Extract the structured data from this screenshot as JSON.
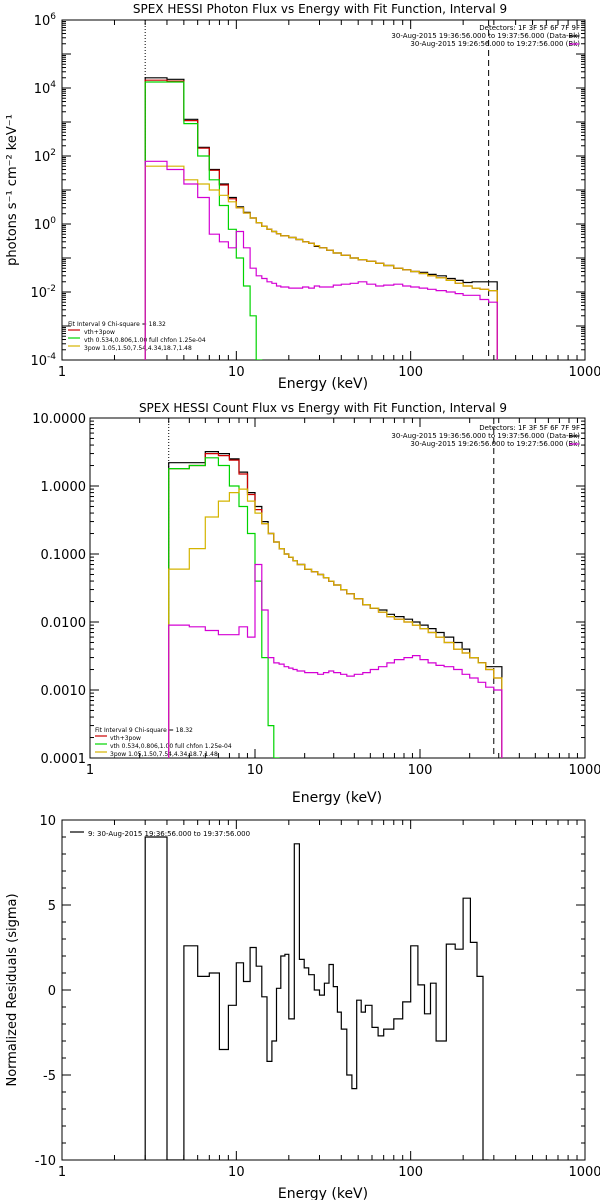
{
  "chart_data": [
    {
      "type": "line",
      "title": "SPEX HESSI Photon Flux vs Energy with Fit Function, Interval 9",
      "xlabel": "Energy (keV)",
      "ylabel": "photons s⁻¹ cm⁻² keV⁻¹",
      "xscale": "log",
      "yscale": "log",
      "xlim": [
        1,
        1000
      ],
      "ylim": [
        0.0001,
        1000000
      ],
      "x_tick_labels": [
        "1",
        "10",
        "100",
        "1000"
      ],
      "y_tick_labels": [
        {
          "base": "10",
          "exp": "-4"
        },
        {
          "base": "10",
          "exp": "-2"
        },
        {
          "base": "10",
          "exp": "0"
        },
        {
          "base": "10",
          "exp": "2"
        },
        {
          "base": "10",
          "exp": "4"
        },
        {
          "base": "10",
          "exp": "6"
        }
      ],
      "header": {
        "detectors": "Detectors: 1F 3F 5F 6F 7F 9F",
        "lines": [
          {
            "text": "30-Aug-2015 19:36:56.000 to 19:37:56.000 (Data-Bk)",
            "color": "#000000"
          },
          {
            "text": "30-Aug-2015 19:26:56.000 to 19:27:56.000 (Bk)",
            "color": "#d400d4"
          }
        ]
      },
      "legend": {
        "placement": "bottom-left",
        "title": "Fit Interval 9   Chi-square = 18.32",
        "entries": [
          {
            "text": "vth+3pow",
            "color": "#cc0000"
          },
          {
            "text": "vth 0.534,0.806,1.00  full chfon 1.25e-04",
            "color": "#00d400"
          },
          {
            "text": "3pow 1.05,1.50,7.54,4.34,18.7,1.48",
            "color": "#d4b400"
          }
        ]
      },
      "vlines": [
        {
          "x": 3,
          "style": "dotted"
        },
        {
          "x": 280,
          "style": "dashed"
        }
      ],
      "series": [
        {
          "name": "Data-Bk",
          "color": "#000000",
          "x": [
            3,
            4,
            5,
            6,
            7,
            8,
            9,
            10,
            11,
            12,
            13,
            14,
            15,
            16,
            17,
            18,
            20,
            22,
            24,
            26,
            28,
            30,
            33,
            36,
            40,
            45,
            50,
            56,
            63,
            70,
            80,
            90,
            100,
            112,
            125,
            140,
            160,
            180,
            200,
            225,
            250,
            280
          ],
          "y": [
            20000,
            18000,
            1200,
            180,
            40,
            15,
            6,
            3.2,
            2.2,
            1.5,
            1.1,
            0.85,
            0.7,
            0.6,
            0.52,
            0.45,
            0.4,
            0.35,
            0.3,
            0.27,
            0.22,
            0.2,
            0.17,
            0.14,
            0.12,
            0.1,
            0.09,
            0.08,
            0.07,
            0.06,
            0.05,
            0.045,
            0.04,
            0.038,
            0.033,
            0.03,
            0.025,
            0.022,
            0.019,
            0.02,
            0.02,
            0.02
          ]
        },
        {
          "name": "vth+3pow",
          "color": "#cc0000",
          "x": [
            3,
            4,
            5,
            6,
            7,
            8,
            9,
            10,
            11,
            12,
            13,
            14,
            15,
            16,
            17,
            18,
            20,
            22,
            24,
            26,
            28,
            30,
            33,
            36,
            40,
            45,
            50,
            56,
            63,
            70,
            80,
            90,
            100,
            112,
            125,
            140,
            160,
            180,
            200,
            225,
            250,
            280
          ],
          "y": [
            17000,
            16000,
            1100,
            170,
            38,
            14,
            5.5,
            3,
            2.1,
            1.5,
            1.1,
            0.85,
            0.7,
            0.6,
            0.52,
            0.45,
            0.4,
            0.35,
            0.3,
            0.27,
            0.23,
            0.2,
            0.17,
            0.14,
            0.12,
            0.1,
            0.09,
            0.08,
            0.07,
            0.06,
            0.05,
            0.045,
            0.04,
            0.035,
            0.03,
            0.026,
            0.022,
            0.018,
            0.015,
            0.013,
            0.012,
            0.011
          ]
        },
        {
          "name": "vth",
          "color": "#00d400",
          "x": [
            3,
            4,
            5,
            6,
            7,
            8,
            9,
            10,
            11,
            12,
            13
          ],
          "y": [
            15000,
            15000,
            900,
            100,
            20,
            3.5,
            0.7,
            0.1,
            0.015,
            0.002,
            0.0001
          ]
        },
        {
          "name": "3pow",
          "color": "#d4b400",
          "x": [
            3,
            4,
            5,
            6,
            7,
            8,
            9,
            10,
            11,
            12,
            13,
            14,
            15,
            16,
            17,
            18,
            20,
            22,
            24,
            26,
            28,
            30,
            33,
            36,
            40,
            45,
            50,
            56,
            63,
            70,
            80,
            90,
            100,
            112,
            125,
            140,
            160,
            180,
            200,
            225,
            250,
            280
          ],
          "y": [
            50,
            50,
            20,
            15,
            10,
            7,
            4.5,
            3,
            2.1,
            1.5,
            1.1,
            0.85,
            0.7,
            0.6,
            0.52,
            0.45,
            0.4,
            0.35,
            0.3,
            0.27,
            0.23,
            0.2,
            0.17,
            0.14,
            0.12,
            0.1,
            0.09,
            0.08,
            0.07,
            0.06,
            0.05,
            0.045,
            0.04,
            0.035,
            0.03,
            0.026,
            0.022,
            0.018,
            0.015,
            0.013,
            0.012,
            0.011
          ]
        },
        {
          "name": "Bk",
          "color": "#d400d4",
          "x": [
            3,
            4,
            5,
            6,
            7,
            8,
            9,
            10,
            11,
            12,
            13,
            14,
            15,
            16,
            17,
            18,
            20,
            22,
            24,
            26,
            28,
            30,
            33,
            36,
            40,
            45,
            50,
            56,
            63,
            70,
            80,
            90,
            100,
            112,
            125,
            140,
            160,
            180,
            200,
            225,
            250,
            280
          ],
          "y": [
            70,
            40,
            15,
            6,
            0.5,
            0.3,
            0.2,
            0.6,
            0.2,
            0.05,
            0.03,
            0.025,
            0.02,
            0.018,
            0.015,
            0.014,
            0.013,
            0.013,
            0.014,
            0.013,
            0.015,
            0.014,
            0.014,
            0.016,
            0.017,
            0.018,
            0.02,
            0.017,
            0.015,
            0.016,
            0.017,
            0.015,
            0.014,
            0.013,
            0.012,
            0.011,
            0.01,
            0.009,
            0.008,
            0.008,
            0.006,
            0.005
          ]
        }
      ]
    },
    {
      "type": "line",
      "title": "SPEX HESSI Count Flux vs Energy with Fit Function, Interval 9",
      "xlabel": "Energy (keV)",
      "ylabel": "",
      "xscale": "log",
      "yscale": "log",
      "xlim": [
        1,
        1000
      ],
      "ylim": [
        0.0001,
        10
      ],
      "x_tick_labels": [
        "1",
        "10",
        "100",
        "1000"
      ],
      "y_tick_labels": [
        "0.0001",
        "0.0010",
        "0.0100",
        "0.1000",
        "1.0000",
        "10.0000"
      ],
      "header": {
        "detectors": "Detectors: 1F 3F 5F 6F 7F 9F",
        "lines": [
          {
            "text": "30-Aug-2015 19:36:56.000 to 19:37:56.000 (Data-Bk)",
            "color": "#000000"
          },
          {
            "text": "30-Aug-2015 19:26:56.000 to 19:27:56.000 (Bk)",
            "color": "#d400d4"
          }
        ]
      },
      "legend": {
        "placement": "bottom-left",
        "title": "Fit Interval 9   Chi-square = 18.32",
        "entries": [
          {
            "text": "vth+3pow",
            "color": "#cc0000"
          },
          {
            "text": "vth 0.534,0.806,1.00  full chfon 1.25e-04",
            "color": "#00d400"
          },
          {
            "text": "3pow 1.05,1.50,7.54,4.34,18.7,1.48",
            "color": "#d4b400"
          }
        ]
      },
      "vlines": [
        {
          "x": 3,
          "style": "dotted"
        },
        {
          "x": 280,
          "style": "dashed"
        }
      ],
      "series": [
        {
          "name": "Data-Bk",
          "color": "#000000",
          "x": [
            3,
            4,
            5,
            6,
            7,
            8,
            9,
            10,
            11,
            12,
            13,
            14,
            15,
            16,
            17,
            18,
            20,
            22,
            24,
            26,
            28,
            30,
            33,
            36,
            40,
            45,
            50,
            56,
            63,
            70,
            80,
            90,
            100,
            112,
            125,
            140,
            160,
            180,
            200,
            225,
            250,
            280
          ],
          "y": [
            2.2,
            2.2,
            3.2,
            3.0,
            2.5,
            1.6,
            0.8,
            0.5,
            0.3,
            0.2,
            0.15,
            0.12,
            0.1,
            0.09,
            0.08,
            0.07,
            0.06,
            0.055,
            0.05,
            0.045,
            0.04,
            0.035,
            0.03,
            0.026,
            0.022,
            0.018,
            0.016,
            0.015,
            0.013,
            0.012,
            0.011,
            0.01,
            0.009,
            0.008,
            0.007,
            0.006,
            0.005,
            0.004,
            0.003,
            0.0025,
            0.0022,
            0.0022
          ]
        },
        {
          "name": "vth+3pow",
          "color": "#cc0000",
          "x": [
            3,
            4,
            5,
            6,
            7,
            8,
            9,
            10,
            11,
            12,
            13,
            14,
            15,
            16,
            17,
            18,
            20,
            22,
            24,
            26,
            28,
            30,
            33,
            36,
            40,
            45,
            50,
            56,
            63,
            70,
            80,
            90,
            100,
            112,
            125,
            140,
            160,
            180,
            200,
            225,
            250,
            280
          ],
          "y": [
            1.8,
            2.0,
            3.0,
            2.8,
            2.4,
            1.5,
            0.75,
            0.45,
            0.28,
            0.2,
            0.15,
            0.12,
            0.1,
            0.09,
            0.08,
            0.07,
            0.06,
            0.055,
            0.05,
            0.045,
            0.04,
            0.035,
            0.03,
            0.026,
            0.022,
            0.018,
            0.016,
            0.014,
            0.012,
            0.011,
            0.01,
            0.009,
            0.008,
            0.007,
            0.006,
            0.005,
            0.004,
            0.0035,
            0.003,
            0.0025,
            0.002,
            0.0015
          ]
        },
        {
          "name": "vth",
          "color": "#00d400",
          "x": [
            3,
            4,
            5,
            6,
            7,
            8,
            9,
            10,
            11,
            12,
            13
          ],
          "y": [
            1.8,
            2.0,
            2.6,
            2.0,
            1.0,
            0.5,
            0.2,
            0.04,
            0.003,
            0.0003,
            0.0001
          ]
        },
        {
          "name": "3pow",
          "color": "#d4b400",
          "x": [
            3,
            4,
            5,
            6,
            7,
            8,
            9,
            10,
            11,
            12,
            13,
            14,
            15,
            16,
            17,
            18,
            20,
            22,
            24,
            26,
            28,
            30,
            33,
            36,
            40,
            45,
            50,
            56,
            63,
            70,
            80,
            90,
            100,
            112,
            125,
            140,
            160,
            180,
            200,
            225,
            250,
            280
          ],
          "y": [
            0.06,
            0.12,
            0.35,
            0.6,
            0.8,
            0.9,
            0.6,
            0.4,
            0.28,
            0.2,
            0.15,
            0.12,
            0.1,
            0.09,
            0.08,
            0.07,
            0.06,
            0.055,
            0.05,
            0.045,
            0.04,
            0.035,
            0.03,
            0.026,
            0.022,
            0.018,
            0.016,
            0.014,
            0.012,
            0.011,
            0.01,
            0.009,
            0.008,
            0.007,
            0.006,
            0.005,
            0.004,
            0.0035,
            0.003,
            0.0025,
            0.002,
            0.0015
          ]
        },
        {
          "name": "Bk",
          "color": "#d400d4",
          "x": [
            3,
            4,
            5,
            6,
            7,
            8,
            9,
            10,
            11,
            12,
            13,
            14,
            15,
            16,
            17,
            18,
            20,
            22,
            24,
            26,
            28,
            30,
            33,
            36,
            40,
            45,
            50,
            56,
            63,
            70,
            80,
            90,
            100,
            112,
            125,
            140,
            160,
            180,
            200,
            225,
            250,
            280
          ],
          "y": [
            0.009,
            0.0085,
            0.0075,
            0.0065,
            0.0065,
            0.0085,
            0.006,
            0.07,
            0.015,
            0.003,
            0.0025,
            0.0024,
            0.0022,
            0.0021,
            0.002,
            0.0019,
            0.0018,
            0.0018,
            0.0017,
            0.0018,
            0.0019,
            0.0018,
            0.0017,
            0.0016,
            0.0017,
            0.0018,
            0.002,
            0.0022,
            0.0025,
            0.0028,
            0.003,
            0.0032,
            0.0028,
            0.0025,
            0.0023,
            0.0022,
            0.002,
            0.0017,
            0.0015,
            0.0013,
            0.0011,
            0.001
          ]
        }
      ]
    },
    {
      "type": "line",
      "title": "",
      "xlabel": "Energy (keV)",
      "ylabel": "Normalized Residuals (sigma)",
      "xscale": "log",
      "yscale": "linear",
      "xlim": [
        1,
        1000
      ],
      "ylim": [
        -10,
        10
      ],
      "x_tick_labels": [
        "1",
        "10",
        "100",
        "1000"
      ],
      "y_tick_labels": [
        "-10",
        "-5",
        "0",
        "5",
        "10"
      ],
      "legend": {
        "placement": "top-left",
        "entries": [
          {
            "text": "9: 30-Aug-2015 19:36:56.000 to 19:37:56.000",
            "color": "#000000"
          }
        ]
      },
      "series": [
        {
          "name": "9: 30-Aug-2015 19:36:56.000 to 19:37:56.000",
          "color": "#000000",
          "edges": [
            3.0,
            4.0,
            5.0,
            5.5,
            6.0,
            7.0,
            8.0,
            9.0,
            10.0,
            11.0,
            12.0,
            13.0,
            14.0,
            15.0,
            16.0,
            17.0,
            18.0,
            19.0,
            20.0,
            21.5,
            23.0,
            24.5,
            26.0,
            28.0,
            30.0,
            32.0,
            34.0,
            36.0,
            38.0,
            40.0,
            43.0,
            46.0,
            49.0,
            52.0,
            55.0,
            60.0,
            65.0,
            70.0,
            80.0,
            90.0,
            100.0,
            110.0,
            120.0,
            130.0,
            140.0,
            160.0,
            180.0,
            200.0,
            220.0,
            240.0,
            260.0,
            280.0
          ],
          "y": [
            9.0,
            -10.0,
            2.6,
            2.6,
            0.8,
            1.0,
            -3.5,
            -0.9,
            1.6,
            0.5,
            2.5,
            1.4,
            -0.4,
            -4.2,
            -3.0,
            0.1,
            2.0,
            2.1,
            -1.7,
            8.6,
            1.8,
            1.3,
            0.9,
            0.0,
            -0.3,
            0.4,
            1.5,
            0.2,
            -1.3,
            -2.3,
            -5.0,
            -5.8,
            -0.6,
            -1.3,
            -0.9,
            -2.2,
            -2.7,
            -2.3,
            -1.7,
            -0.7,
            2.6,
            0.3,
            -1.4,
            0.4,
            -3.0,
            2.7,
            2.4,
            5.4,
            2.8,
            0.8,
            -10.0
          ]
        }
      ]
    }
  ]
}
